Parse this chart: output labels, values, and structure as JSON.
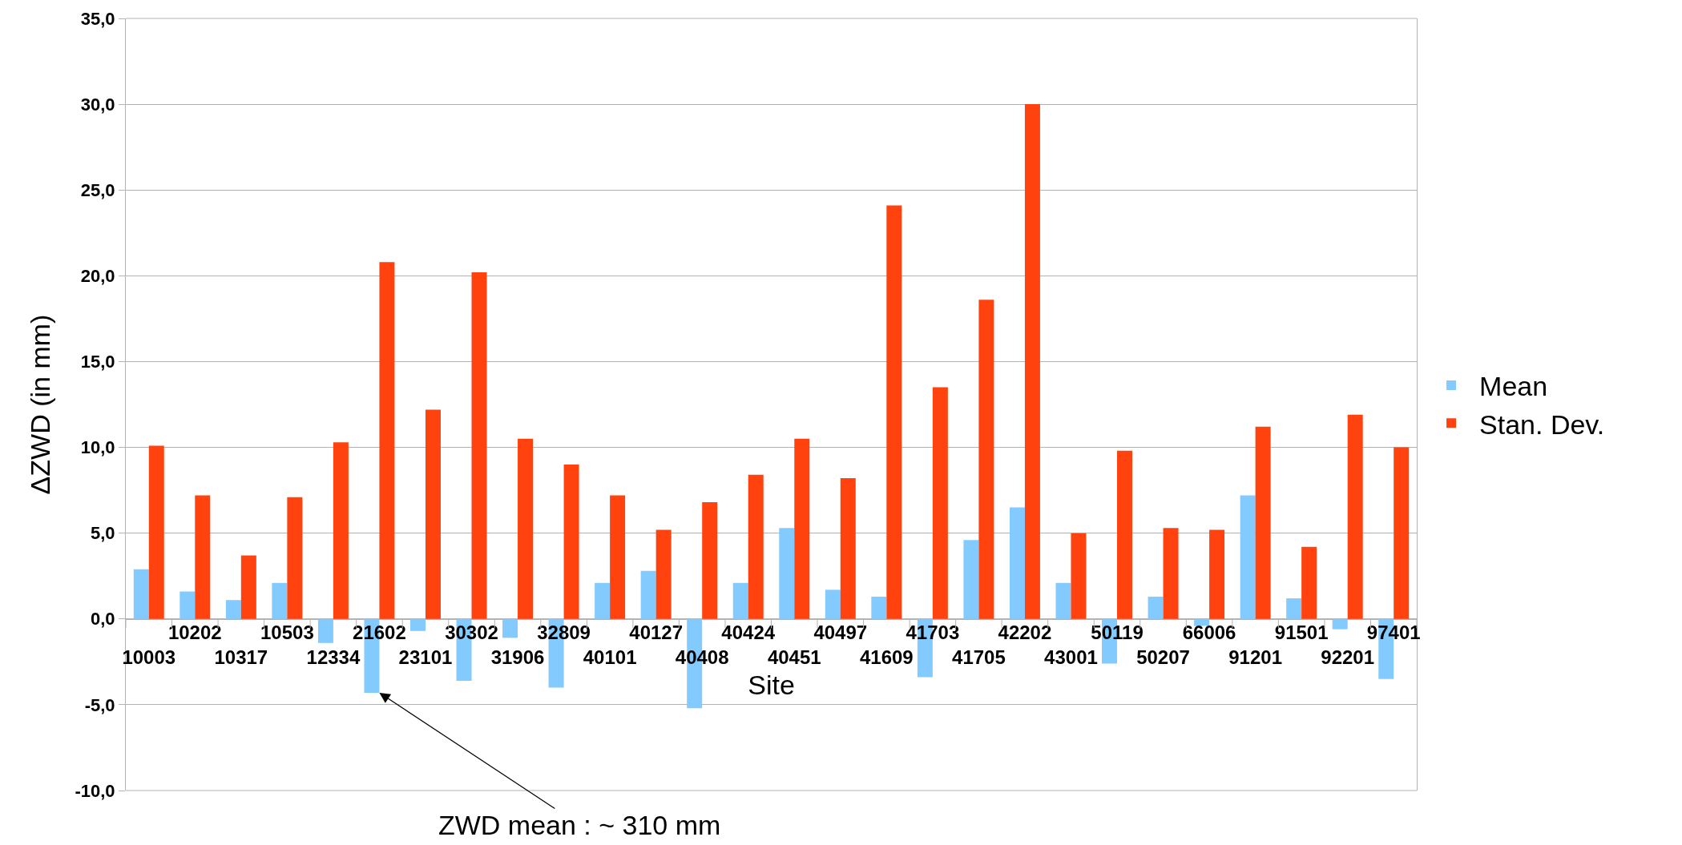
{
  "chart_data": {
    "type": "bar",
    "xlabel": "Site",
    "ylabel": "ΔZWD (in mm)",
    "categories": [
      "10003",
      "10202",
      "10317",
      "10503",
      "12334",
      "21602",
      "23101",
      "30302",
      "31906",
      "32809",
      "40101",
      "40127",
      "40408",
      "40424",
      "40451",
      "40497",
      "41609",
      "41703",
      "41705",
      "42202",
      "43001",
      "50119",
      "50207",
      "66006",
      "91201",
      "91501",
      "92201",
      "97401"
    ],
    "series": [
      {
        "name": "Mean",
        "color": "#83caff",
        "values": [
          2.9,
          1.6,
          1.1,
          2.1,
          -1.4,
          -4.3,
          -0.7,
          -3.6,
          -1.1,
          -4.0,
          2.1,
          2.8,
          -5.2,
          2.1,
          5.3,
          1.7,
          1.3,
          -3.4,
          4.6,
          6.5,
          2.1,
          -2.6,
          1.3,
          -0.4,
          7.2,
          1.2,
          -0.6,
          -3.5
        ]
      },
      {
        "name": "Stan. Dev.",
        "color": "#ff420e",
        "values": [
          10.1,
          7.2,
          3.7,
          7.1,
          10.3,
          20.8,
          12.2,
          20.2,
          10.5,
          9.0,
          7.2,
          5.2,
          6.8,
          8.4,
          10.5,
          8.2,
          24.1,
          13.5,
          18.6,
          30.0,
          5.0,
          9.8,
          5.3,
          5.2,
          11.2,
          4.2,
          11.9,
          10.0
        ]
      }
    ],
    "ylim": [
      -10,
      35
    ],
    "yticks": [
      {
        "value": -10,
        "label": "-10,0"
      },
      {
        "value": -5,
        "label": "-5,0"
      },
      {
        "value": 0,
        "label": "0,0"
      },
      {
        "value": 5,
        "label": "5,0"
      },
      {
        "value": 10,
        "label": "10,0"
      },
      {
        "value": 15,
        "label": "15,0"
      },
      {
        "value": 20,
        "label": "20,0"
      },
      {
        "value": 25,
        "label": "25,0"
      },
      {
        "value": 30,
        "label": "30,0"
      },
      {
        "value": 35,
        "label": "35,0"
      }
    ],
    "grid": "y",
    "legend": "right",
    "annotations": [
      {
        "text": "ZWD mean : ~ 310 mm",
        "x": "21602",
        "y": -4.3
      }
    ]
  }
}
